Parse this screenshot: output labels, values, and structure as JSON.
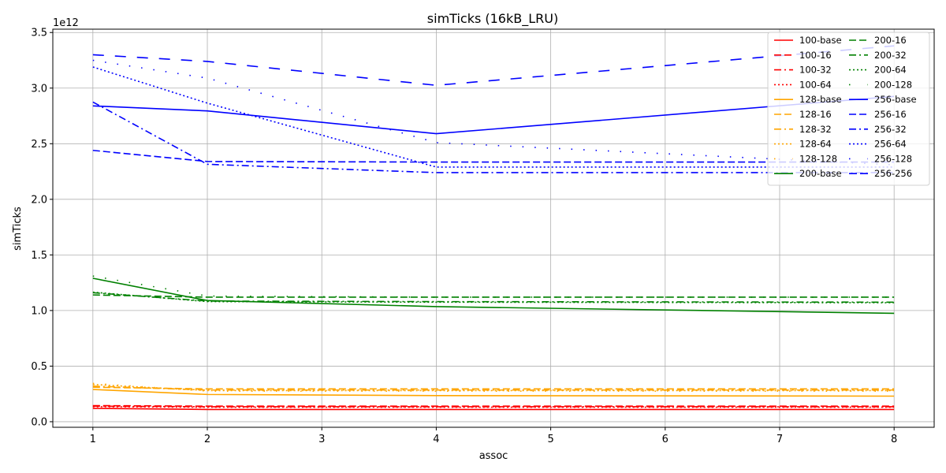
{
  "chart_data": {
    "type": "line",
    "title": "simTicks (16kB_LRU)",
    "xlabel": "assoc",
    "ylabel": "simTicks",
    "offset_text": "1e12",
    "x": [
      1,
      2,
      4,
      8
    ],
    "xlim": [
      0.65,
      8.35
    ],
    "ylim": [
      -0.05,
      3.53
    ],
    "xticks": [
      "1",
      "2",
      "3",
      "4",
      "5",
      "6",
      "7",
      "8"
    ],
    "yticks": [
      "0.0",
      "0.5",
      "1.0",
      "1.5",
      "2.0",
      "2.5",
      "3.0",
      "3.5"
    ],
    "grid": true,
    "legend_position": "top-right",
    "series": [
      {
        "name": "100-base",
        "color": "#ff0000",
        "style": "solid",
        "values": [
          0.12,
          0.11,
          0.11,
          0.11
        ]
      },
      {
        "name": "100-16",
        "color": "#ff0000",
        "style": "dashed",
        "values": [
          0.145,
          0.14,
          0.14,
          0.14
        ]
      },
      {
        "name": "100-32",
        "color": "#ff0000",
        "style": "dashdot",
        "values": [
          0.14,
          0.135,
          0.135,
          0.135
        ]
      },
      {
        "name": "100-64",
        "color": "#ff0000",
        "style": "dotted",
        "values": [
          0.135,
          0.13,
          0.13,
          0.13
        ]
      },
      {
        "name": "128-base",
        "color": "#ffa500",
        "style": "solid",
        "values": [
          0.29,
          0.245,
          0.235,
          0.23
        ]
      },
      {
        "name": "128-16",
        "color": "#ffa500",
        "style": "dashed",
        "values": [
          0.31,
          0.295,
          0.295,
          0.295
        ]
      },
      {
        "name": "128-32",
        "color": "#ffa500",
        "style": "dashdot",
        "values": [
          0.32,
          0.285,
          0.285,
          0.285
        ]
      },
      {
        "name": "128-64",
        "color": "#ffa500",
        "style": "dotted",
        "values": [
          0.335,
          0.28,
          0.28,
          0.28
        ]
      },
      {
        "name": "128-128",
        "color": "#ffa500",
        "style": "loosedot",
        "values": [
          0.345,
          0.275,
          0.275,
          0.275
        ]
      },
      {
        "name": "200-base",
        "color": "#008000",
        "style": "solid",
        "values": [
          1.29,
          1.09,
          1.035,
          0.975
        ]
      },
      {
        "name": "200-16",
        "color": "#008000",
        "style": "dashed",
        "values": [
          1.14,
          1.12,
          1.12,
          1.12
        ]
      },
      {
        "name": "200-32",
        "color": "#008000",
        "style": "dashdot",
        "values": [
          1.16,
          1.085,
          1.08,
          1.075
        ]
      },
      {
        "name": "200-64",
        "color": "#008000",
        "style": "dotted",
        "values": [
          1.165,
          1.08,
          1.075,
          1.07
        ]
      },
      {
        "name": "200-128",
        "color": "#008000",
        "style": "loosedot",
        "values": [
          1.31,
          1.13,
          1.12,
          1.12
        ]
      },
      {
        "name": "256-base",
        "color": "#0000ff",
        "style": "solid",
        "values": [
          2.84,
          2.795,
          2.59,
          2.925
        ]
      },
      {
        "name": "256-16",
        "color": "#0000ff",
        "style": "dashed",
        "values": [
          2.44,
          2.34,
          2.335,
          2.335
        ]
      },
      {
        "name": "256-32",
        "color": "#0000ff",
        "style": "dashdot",
        "values": [
          2.875,
          2.315,
          2.24,
          2.24
        ]
      },
      {
        "name": "256-64",
        "color": "#0000ff",
        "style": "dotted",
        "values": [
          3.19,
          2.865,
          2.29,
          2.29
        ]
      },
      {
        "name": "256-128",
        "color": "#0000ff",
        "style": "loosedot",
        "values": [
          3.25,
          3.09,
          2.51,
          2.31
        ]
      },
      {
        "name": "256-256",
        "color": "#0000ff",
        "style": "longdash",
        "values": [
          3.3,
          3.24,
          3.025,
          3.38
        ]
      }
    ]
  }
}
